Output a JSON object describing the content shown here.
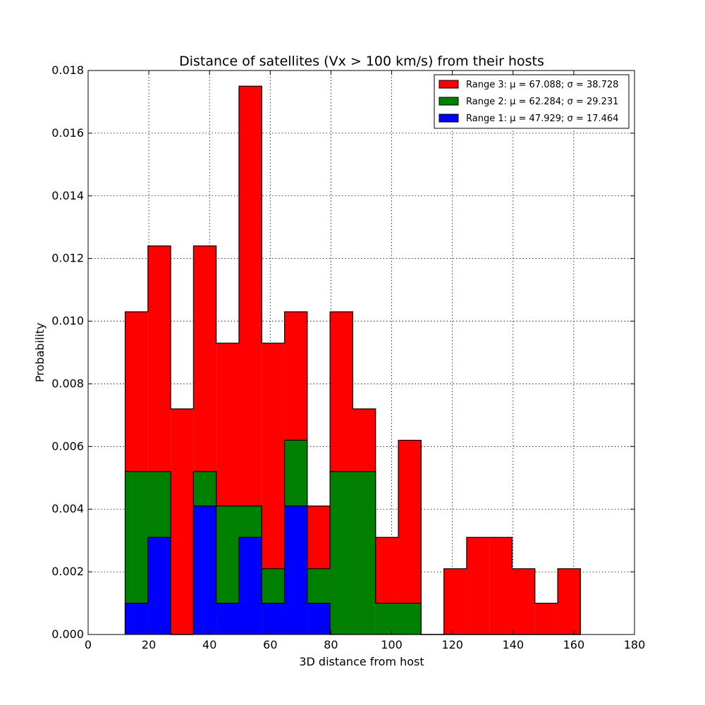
{
  "chart_data": {
    "type": "bar",
    "title": "Distance of satellites (Vx > 100 km/s) from their hosts",
    "xlabel": "3D distance from host",
    "ylabel": "Probability",
    "xlim": [
      0,
      180
    ],
    "ylim": [
      0,
      0.018
    ],
    "xticks": [
      "0",
      "20",
      "40",
      "60",
      "80",
      "100",
      "120",
      "140",
      "160",
      "180"
    ],
    "yticks": [
      "0.000",
      "0.002",
      "0.004",
      "0.006",
      "0.008",
      "0.010",
      "0.012",
      "0.014",
      "0.016",
      "0.018"
    ],
    "grid": true,
    "legend_position": "top-right",
    "bin_edges": [
      12.2,
      19.7,
      27.2,
      34.7,
      42.2,
      49.7,
      57.2,
      64.7,
      72.2,
      79.7,
      87.2,
      94.7,
      102.2,
      109.7,
      117.2,
      124.7,
      132.2,
      139.7,
      147.2,
      154.7,
      162.2
    ],
    "series": [
      {
        "name": "Range 3",
        "legend": "Range 3: μ = 67.088; σ = 38.728",
        "color": "#ff0000",
        "values": [
          0.0103,
          0.0124,
          0.0072,
          0.0124,
          0.0093,
          0.0175,
          0.0093,
          0.0103,
          0.0041,
          0.0103,
          0.0072,
          0.0031,
          0.0062,
          0.0,
          0.0021,
          0.0031,
          0.0031,
          0.0021,
          0.001,
          0.0021
        ]
      },
      {
        "name": "Range 2",
        "legend": "Range 2: μ = 62.284; σ = 29.231",
        "color": "#008000",
        "values": [
          0.0052,
          0.0052,
          0.0,
          0.0052,
          0.0041,
          0.0041,
          0.0021,
          0.0062,
          0.0021,
          0.0052,
          0.0052,
          0.001,
          0.001,
          0.0,
          0.0,
          0.0,
          0.0,
          0.0,
          0.0,
          0.0
        ]
      },
      {
        "name": "Range 1",
        "legend": "Range 1: μ = 47.929; σ = 17.464",
        "color": "#0000ff",
        "values": [
          0.001,
          0.0031,
          0.0,
          0.0041,
          0.001,
          0.0031,
          0.001,
          0.0041,
          0.001,
          0.0,
          0.0,
          0.0,
          0.0,
          0.0,
          0.0,
          0.0,
          0.0,
          0.0,
          0.0,
          0.0
        ]
      }
    ]
  }
}
